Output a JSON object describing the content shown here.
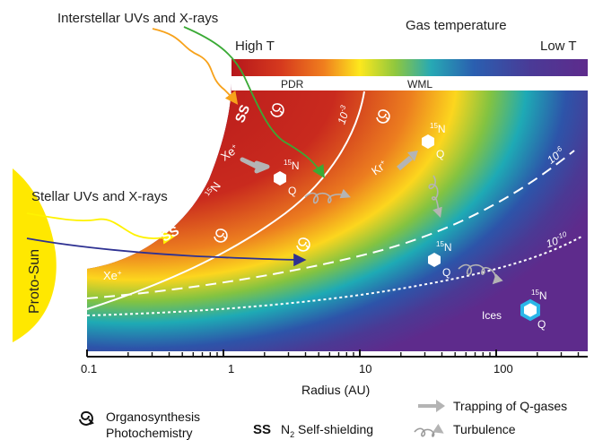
{
  "incoming": {
    "interstellar": "Interstellar UVs and X-rays",
    "stellar": "Stellar UVs and X-rays"
  },
  "colorbar": {
    "title": "Gas temperature",
    "high": "High T",
    "low": "Low T",
    "zone_pdr": "PDR",
    "zone_wml": "WML"
  },
  "star": {
    "label": "Proto-Sun"
  },
  "contours": {
    "c1": "10",
    "c1_exp": "-3",
    "c2": "10",
    "c2_exp": "-6",
    "c3": "10",
    "c3_exp": "-10"
  },
  "region_labels": {
    "ss": "SS",
    "xe_ion": "Xe",
    "kr_ion": "Kr",
    "ion_sup": "+",
    "n15_sup": "15",
    "n15": "N",
    "q": "Q",
    "ices": "Ices"
  },
  "axis": {
    "title": "Radius (AU)",
    "ticks": [
      "0.1",
      "1",
      "10",
      "100"
    ]
  },
  "legend": {
    "organo_line1": "Organosynthesis",
    "organo_line2": "Photochemistry",
    "ss_symbol": "SS",
    "ss_pre": "N",
    "ss_sub": "2",
    "ss_post": " Self-shielding",
    "trapping": "Trapping of Q-gases",
    "turbulence": "Turbulence"
  },
  "colors": {
    "hot": "#c4161c",
    "cold": "#5b2a8a",
    "star": "#ffe800",
    "interstellar_arrow_orange": "#f7a21b",
    "interstellar_arrow_green": "#3aaa35",
    "stellar_arrow_yellow": "#fff200",
    "stellar_arrow_blue": "#2e3192"
  }
}
